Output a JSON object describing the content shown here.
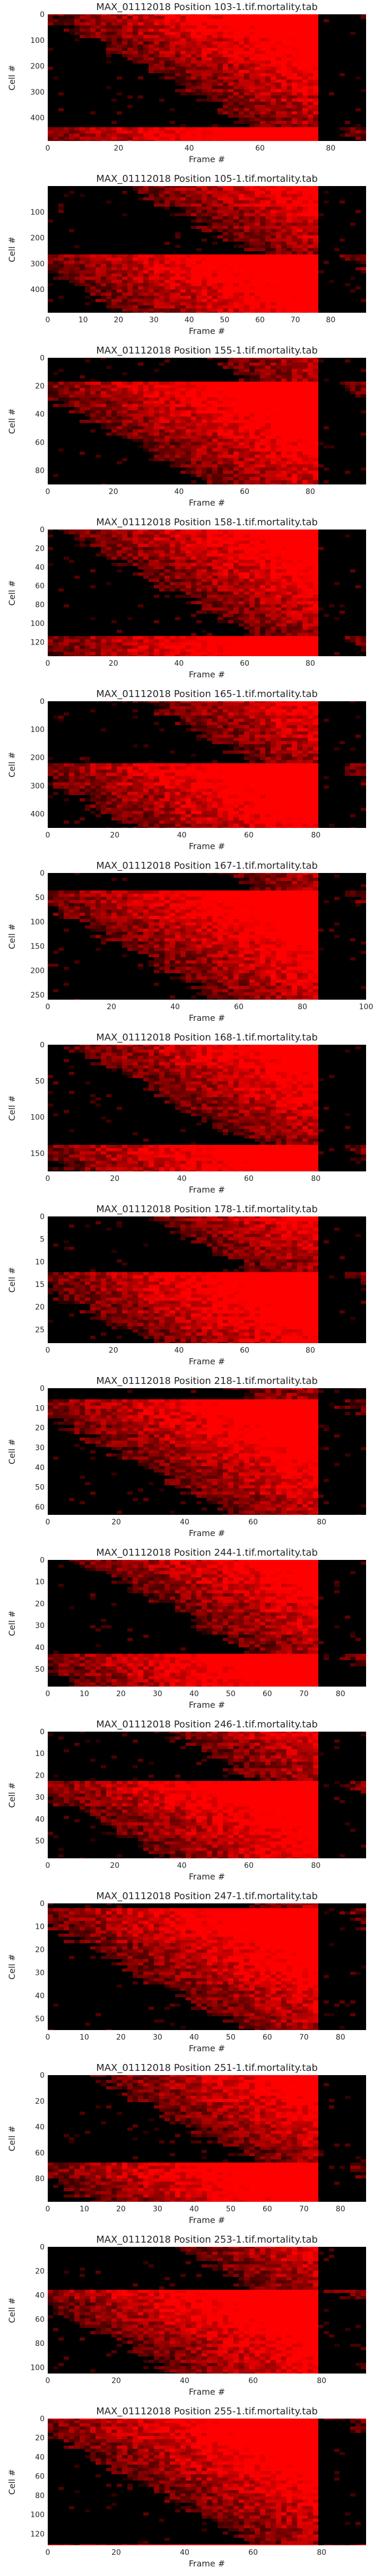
{
  "chart_data": [
    {
      "type": "heatmap",
      "title": "MAX_01112018 Position 103-1.tif.mortality.tab",
      "xlabel": "Frame #",
      "ylabel": "Cell #",
      "x_ticks": [
        0,
        20,
        40,
        60,
        80
      ],
      "y_ticks": [
        0,
        100,
        200,
        300,
        400
      ],
      "xlim": [
        0,
        90
      ],
      "ylim": [
        0,
        490
      ],
      "colormap": [
        "#000000",
        "#ff0000"
      ]
    },
    {
      "type": "heatmap",
      "title": "MAX_01112018 Position 105-1.tif.mortality.tab",
      "xlabel": "Frame #",
      "ylabel": "Cell #",
      "x_ticks": [
        0,
        10,
        20,
        30,
        40,
        50,
        60,
        70,
        80
      ],
      "y_ticks": [
        100,
        200,
        300,
        400
      ],
      "xlim": [
        0,
        90
      ],
      "ylim": [
        0,
        490
      ],
      "colormap": [
        "#000000",
        "#ff0000"
      ]
    },
    {
      "type": "heatmap",
      "title": "MAX_01112018 Position 155-1.tif.mortality.tab",
      "xlabel": "Frame #",
      "ylabel": "Cell #",
      "x_ticks": [
        0,
        20,
        40,
        60,
        80
      ],
      "y_ticks": [
        0,
        20,
        40,
        60,
        80
      ],
      "xlim": [
        0,
        97
      ],
      "ylim": [
        0,
        90
      ],
      "colormap": [
        "#000000",
        "#ff0000"
      ]
    },
    {
      "type": "heatmap",
      "title": "MAX_01112018 Position 158-1.tif.mortality.tab",
      "xlabel": "Frame #",
      "ylabel": "Cell #",
      "x_ticks": [
        0,
        20,
        40,
        60,
        80
      ],
      "y_ticks": [
        0,
        20,
        40,
        60,
        80,
        100,
        120
      ],
      "xlim": [
        0,
        97
      ],
      "ylim": [
        0,
        135
      ],
      "colormap": [
        "#000000",
        "#ff0000"
      ]
    },
    {
      "type": "heatmap",
      "title": "MAX_01112018 Position 165-1.tif.mortality.tab",
      "xlabel": "Frame #",
      "ylabel": "Cell #",
      "x_ticks": [
        0,
        20,
        40,
        60,
        80
      ],
      "y_ticks": [
        0,
        100,
        200,
        300,
        400
      ],
      "xlim": [
        0,
        95
      ],
      "ylim": [
        0,
        450
      ],
      "colormap": [
        "#000000",
        "#ff0000"
      ]
    },
    {
      "type": "heatmap",
      "title": "MAX_01112018 Position 167-1.tif.mortality.tab",
      "xlabel": "Frame #",
      "ylabel": "Cell #",
      "x_ticks": [
        0,
        20,
        40,
        60,
        80,
        100
      ],
      "y_ticks": [
        0,
        50,
        100,
        150,
        200,
        250
      ],
      "xlim": [
        0,
        100
      ],
      "ylim": [
        0,
        260
      ],
      "colormap": [
        "#000000",
        "#ff0000"
      ]
    },
    {
      "type": "heatmap",
      "title": "MAX_01112018 Position 168-1.tif.mortality.tab",
      "xlabel": "Frame #",
      "ylabel": "Cell #",
      "x_ticks": [
        0,
        20,
        40,
        60,
        80
      ],
      "y_ticks": [
        0,
        50,
        100,
        150
      ],
      "xlim": [
        0,
        95
      ],
      "ylim": [
        0,
        175
      ],
      "colormap": [
        "#000000",
        "#ff0000"
      ]
    },
    {
      "type": "heatmap",
      "title": "MAX_01112018 Position 178-1.tif.mortality.tab",
      "xlabel": "Frame #",
      "ylabel": "Cell #",
      "x_ticks": [
        0,
        20,
        40,
        60,
        80
      ],
      "y_ticks": [
        0,
        5,
        10,
        15,
        20,
        25
      ],
      "xlim": [
        0,
        97
      ],
      "ylim": [
        0,
        28
      ],
      "colormap": [
        "#000000",
        "#ff0000"
      ]
    },
    {
      "type": "heatmap",
      "title": "MAX_01112018 Position 218-1.tif.mortality.tab",
      "xlabel": "Frame #",
      "ylabel": "Cell #",
      "x_ticks": [
        0,
        20,
        40,
        60,
        80
      ],
      "y_ticks": [
        0,
        10,
        20,
        30,
        40,
        50,
        60
      ],
      "xlim": [
        0,
        93
      ],
      "ylim": [
        0,
        64
      ],
      "colormap": [
        "#000000",
        "#ff0000"
      ]
    },
    {
      "type": "heatmap",
      "title": "MAX_01112018 Position 244-1.tif.mortality.tab",
      "xlabel": "Frame #",
      "ylabel": "Cell #",
      "x_ticks": [
        0,
        10,
        20,
        30,
        40,
        50,
        60,
        70,
        80
      ],
      "y_ticks": [
        0,
        10,
        20,
        30,
        40,
        50
      ],
      "xlim": [
        0,
        87
      ],
      "ylim": [
        0,
        58
      ],
      "colormap": [
        "#000000",
        "#ff0000"
      ]
    },
    {
      "type": "heatmap",
      "title": "MAX_01112018 Position 246-1.tif.mortality.tab",
      "xlabel": "Frame #",
      "ylabel": "Cell #",
      "x_ticks": [
        0,
        20,
        40,
        60,
        80
      ],
      "y_ticks": [
        0,
        10,
        20,
        30,
        40,
        50
      ],
      "xlim": [
        0,
        95
      ],
      "ylim": [
        0,
        58
      ],
      "colormap": [
        "#000000",
        "#ff0000"
      ]
    },
    {
      "type": "heatmap",
      "title": "MAX_01112018 Position 247-1.tif.mortality.tab",
      "xlabel": "Frame #",
      "ylabel": "Cell #",
      "x_ticks": [
        0,
        10,
        20,
        30,
        40,
        50,
        60,
        70,
        80
      ],
      "y_ticks": [
        0,
        10,
        20,
        30,
        40,
        50
      ],
      "xlim": [
        0,
        87
      ],
      "ylim": [
        0,
        55
      ],
      "colormap": [
        "#000000",
        "#ff0000"
      ]
    },
    {
      "type": "heatmap",
      "title": "MAX_01112018 Position 251-1.tif.mortality.tab",
      "xlabel": "Frame #",
      "ylabel": "Cell #",
      "x_ticks": [
        0,
        10,
        20,
        30,
        40,
        50,
        60,
        70,
        80
      ],
      "y_ticks": [
        0,
        20,
        40,
        60,
        80
      ],
      "xlim": [
        0,
        87
      ],
      "ylim": [
        0,
        98
      ],
      "colormap": [
        "#000000",
        "#ff0000"
      ]
    },
    {
      "type": "heatmap",
      "title": "MAX_01112018 Position 253-1.tif.mortality.tab",
      "xlabel": "Frame #",
      "ylabel": "Cell #",
      "x_ticks": [
        0,
        20,
        40,
        60,
        80
      ],
      "y_ticks": [
        0,
        20,
        40,
        60,
        80,
        100
      ],
      "xlim": [
        0,
        93
      ],
      "ylim": [
        0,
        105
      ],
      "colormap": [
        "#000000",
        "#ff0000"
      ]
    },
    {
      "type": "heatmap",
      "title": "MAX_01112018 Position 255-1.tif.mortality.tab",
      "xlabel": "Frame #",
      "ylabel": "Cell #",
      "x_ticks": [
        0,
        20,
        40,
        60,
        80
      ],
      "y_ticks": [
        0,
        20,
        40,
        60,
        80,
        100,
        120
      ],
      "xlim": [
        0,
        93
      ],
      "ylim": [
        0,
        132
      ],
      "colormap": [
        "#000000",
        "#ff0000"
      ]
    }
  ]
}
